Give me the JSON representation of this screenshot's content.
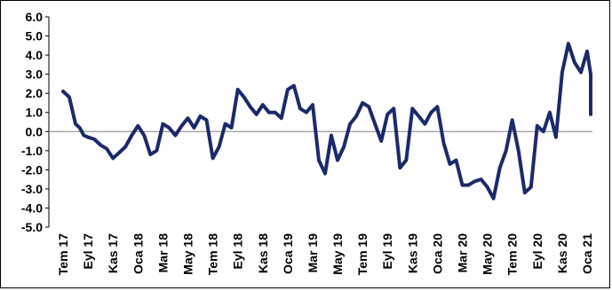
{
  "chart_data": {
    "type": "line",
    "title": "",
    "xlabel": "",
    "ylabel": "",
    "ylim": [
      -5.0,
      6.0
    ],
    "yticks": [
      "6.0",
      "5.0",
      "4.0",
      "3.0",
      "2.0",
      "1.0",
      "0.0",
      "-1.0",
      "-2.0",
      "-3.0",
      "-4.0",
      "-5.0"
    ],
    "xticks": [
      "Tem 17",
      "Eyl 17",
      "Kas 17",
      "Oca 18",
      "Mar 18",
      "May 18",
      "Tem 18",
      "Eyl 18",
      "Kas 18",
      "Oca 19",
      "Mar 19",
      "May 19",
      "Tem 19",
      "Eyl 19",
      "Kas 19",
      "Oca 20",
      "Mar 20",
      "May 20",
      "Tem 20",
      "Eyl 20",
      "Kas 20",
      "Oca 21"
    ],
    "grid": false,
    "legend": "none",
    "colors": {
      "line": "#1b2a6b",
      "zero_line": "#808080"
    },
    "series": [
      {
        "x": [
          "2017-07",
          "2017-07",
          "2017-08",
          "2017-08",
          "2017-08",
          "2017-09",
          "2017-09",
          "2017-10",
          "2017-10",
          "2017-11",
          "2017-11",
          "2017-12",
          "2017-12",
          "2018-01",
          "2018-01",
          "2018-02",
          "2018-02",
          "2018-03",
          "2018-03",
          "2018-04",
          "2018-04",
          "2018-05",
          "2018-05",
          "2018-06",
          "2018-06",
          "2018-07",
          "2018-07",
          "2018-08",
          "2018-08",
          "2018-09",
          "2018-09",
          "2018-10",
          "2018-10",
          "2018-11",
          "2018-11",
          "2018-12",
          "2018-12",
          "2019-01",
          "2019-01",
          "2019-02",
          "2019-02",
          "2019-03",
          "2019-03",
          "2019-04",
          "2019-04",
          "2019-05",
          "2019-05",
          "2019-06",
          "2019-06",
          "2019-07",
          "2019-07",
          "2019-08",
          "2019-08",
          "2019-09",
          "2019-09",
          "2019-10",
          "2019-10",
          "2019-11",
          "2019-11",
          "2019-12",
          "2019-12",
          "2020-01",
          "2020-01",
          "2020-02",
          "2020-02",
          "2020-03",
          "2020-03",
          "2020-04",
          "2020-04",
          "2020-05",
          "2020-05",
          "2020-06",
          "2020-06",
          "2020-07",
          "2020-07",
          "2020-08",
          "2020-08",
          "2020-09",
          "2020-09",
          "2020-10",
          "2020-10",
          "2020-11",
          "2020-11",
          "2020-12",
          "2020-12",
          "2021-01",
          "2021-01",
          "2021-02"
        ],
        "values": [
          2.1,
          1.8,
          0.4,
          0.2,
          -0.2,
          -0.3,
          -0.4,
          -0.7,
          -0.9,
          -1.4,
          -1.1,
          -0.8,
          -0.2,
          0.3,
          -0.2,
          -1.2,
          -1.0,
          0.4,
          0.2,
          -0.2,
          0.3,
          0.7,
          0.2,
          0.8,
          0.6,
          -1.4,
          -0.8,
          0.4,
          0.2,
          2.2,
          1.8,
          1.3,
          0.9,
          1.4,
          1.0,
          1.0,
          0.7,
          2.2,
          2.4,
          1.2,
          1.0,
          1.4,
          -1.5,
          -2.2,
          -0.2,
          -1.5,
          -0.8,
          0.4,
          0.8,
          1.5,
          1.3,
          0.4,
          -0.5,
          0.9,
          1.2,
          -1.9,
          -1.5,
          1.2,
          0.8,
          0.4,
          1.0,
          1.3,
          -0.6,
          -1.7,
          -1.5,
          -2.8,
          -2.8,
          -2.6,
          -2.5,
          -2.9,
          -3.5,
          -1.9,
          -1.0,
          0.6,
          -1.0,
          -3.2,
          -2.9,
          0.3,
          0.0,
          1.0,
          -0.3,
          3.1,
          4.6,
          3.6,
          3.1,
          4.2,
          3.0,
          0.9
        ]
      }
    ]
  }
}
